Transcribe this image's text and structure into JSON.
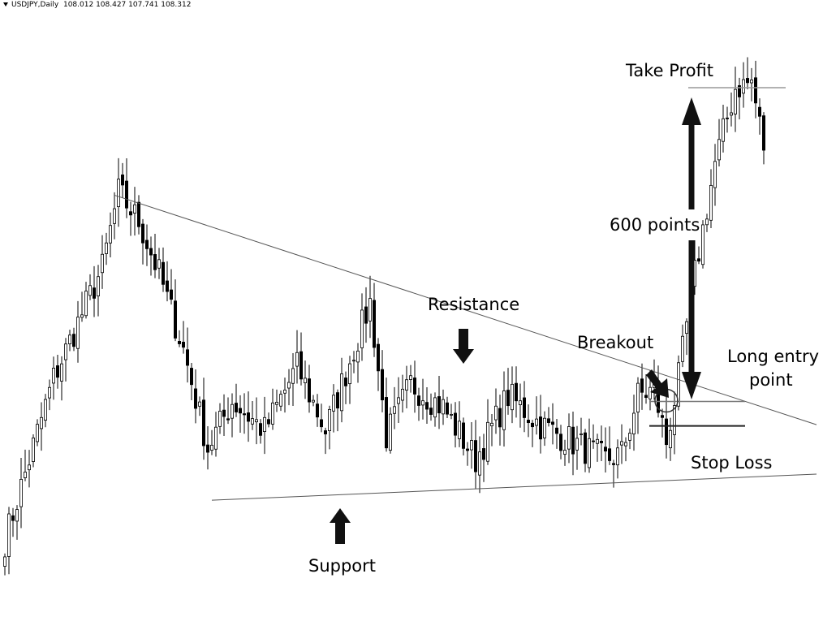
{
  "header": {
    "symbol": "USDJPY,Daily",
    "ohlc": "108.012 108.427 107.741 108.312"
  },
  "chart_data": {
    "type": "candlestick",
    "title": "",
    "xlabel": "",
    "ylabel": "",
    "ylim": [
      100.4,
      110.6
    ],
    "grid": false,
    "bar_count": 188,
    "anchors": [
      [
        0,
        101.5
      ],
      [
        12,
        104.3
      ],
      [
        24,
        106.2
      ],
      [
        28,
        107.5
      ],
      [
        33,
        107.0
      ],
      [
        38,
        106.1
      ],
      [
        44,
        104.8
      ],
      [
        50,
        103.1
      ],
      [
        56,
        103.9
      ],
      [
        64,
        103.4
      ],
      [
        72,
        104.5
      ],
      [
        79,
        103.4
      ],
      [
        86,
        104.8
      ],
      [
        90,
        105.6
      ],
      [
        94,
        103.3
      ],
      [
        100,
        104.2
      ],
      [
        108,
        103.8
      ],
      [
        116,
        102.9
      ],
      [
        124,
        104.0
      ],
      [
        132,
        103.5
      ],
      [
        140,
        103.2
      ],
      [
        148,
        102.9
      ],
      [
        152,
        103.0
      ],
      [
        156,
        104.0
      ],
      [
        160,
        104.1
      ],
      [
        163,
        103.2
      ],
      [
        166,
        104.3
      ],
      [
        170,
        106.1
      ],
      [
        175,
        108.0
      ],
      [
        180,
        109.3
      ],
      [
        184,
        109.4
      ],
      [
        187,
        108.3
      ]
    ],
    "support_line": {
      "from": [
        51,
        102.2
      ],
      "to": [
        200,
        102.65
      ]
    },
    "resistance_line": {
      "from": [
        27,
        107.45
      ],
      "to": [
        200,
        103.5
      ]
    },
    "take_profit_level": 109.3,
    "entry_level": 103.9,
    "stop_loss_level": 103.48,
    "breakout_index": 163,
    "annotations": {
      "take_profit": "Take Profit",
      "points": "600 points",
      "resistance": "Resistance",
      "breakout": "Breakout",
      "long_entry_1": "Long entry",
      "long_entry_2": "point",
      "stop_loss": "Stop Loss",
      "support": "Support"
    }
  }
}
